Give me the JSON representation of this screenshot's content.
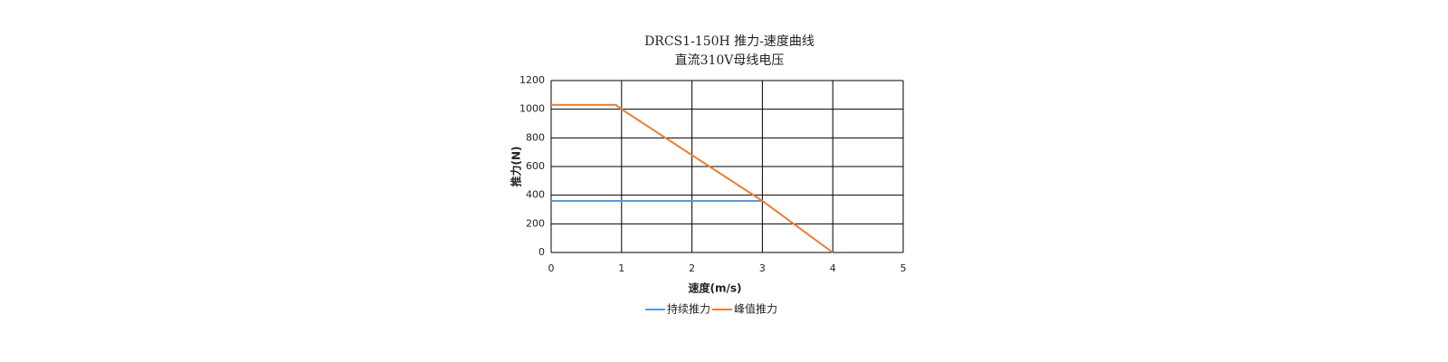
{
  "chart_data": {
    "type": "line",
    "title": "DRCS1-150H   推力-速度曲线",
    "subtitle": "直流310V母线电压",
    "x_label": "速度(m/s)",
    "y_label": "推力(N)",
    "xlim": [
      0,
      5
    ],
    "xticks": [
      0,
      1,
      2,
      3,
      4,
      5
    ],
    "ylim": [
      0,
      1200
    ],
    "yticks": [
      0,
      200,
      400,
      600,
      800,
      1000,
      1200
    ],
    "grid": true,
    "legend": "bottom",
    "series": [
      {
        "name": "持续推力",
        "color": "#5b9bd5",
        "x": [
          0,
          3
        ],
        "values": [
          360,
          360
        ]
      },
      {
        "name": "峰值推力",
        "color": "#ed7d31",
        "x": [
          0,
          0.92,
          1,
          3,
          4
        ],
        "values": [
          1030,
          1030,
          1000,
          360,
          0
        ]
      }
    ]
  }
}
